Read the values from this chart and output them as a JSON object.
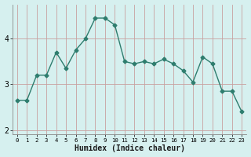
{
  "x": [
    0,
    1,
    2,
    3,
    4,
    5,
    6,
    7,
    8,
    9,
    10,
    11,
    12,
    13,
    14,
    15,
    16,
    17,
    18,
    19,
    20,
    21,
    22,
    23
  ],
  "y": [
    2.65,
    2.65,
    3.2,
    3.2,
    3.7,
    3.35,
    3.75,
    4.0,
    4.45,
    4.45,
    4.3,
    3.5,
    3.45,
    3.5,
    3.45,
    3.55,
    3.45,
    3.3,
    3.05,
    3.6,
    3.45,
    2.85,
    2.85,
    2.4
  ],
  "line_color": "#2e7d6e",
  "marker": "D",
  "marker_size": 2.5,
  "bg_color": "#d6f0ef",
  "vgrid_color": "#c8a0a0",
  "hgrid_color": "#c8a0a0",
  "xlabel": "Humidex (Indice chaleur)",
  "xlim": [
    -0.5,
    23.5
  ],
  "ylim": [
    1.9,
    4.75
  ],
  "yticks": [
    2,
    3,
    4
  ],
  "xtick_labels": [
    "0",
    "1",
    "2",
    "3",
    "4",
    "5",
    "6",
    "7",
    "8",
    "9",
    "10",
    "11",
    "12",
    "13",
    "14",
    "15",
    "16",
    "17",
    "18",
    "19",
    "20",
    "21",
    "22",
    "23"
  ]
}
